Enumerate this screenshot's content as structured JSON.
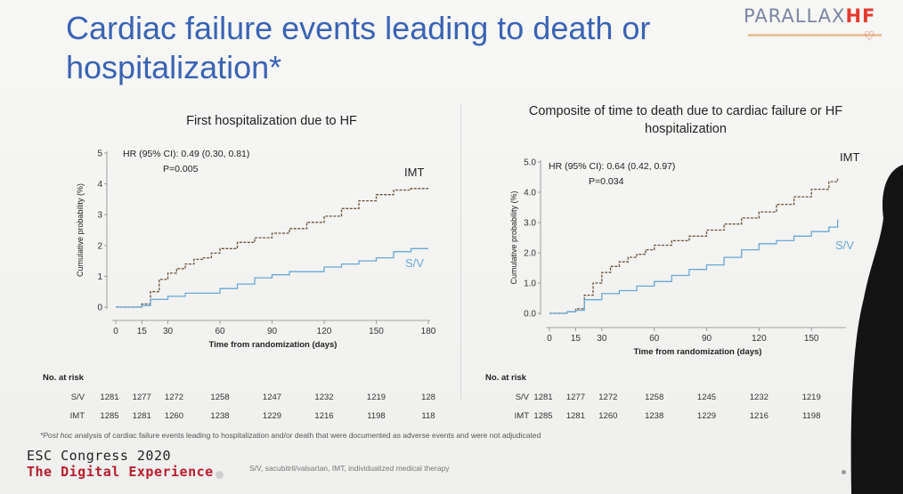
{
  "slide": {
    "title": "Cardiac failure events leading to death or hospitalization*",
    "logo": {
      "main": "PARALLAX",
      "accent": "HF"
    },
    "footnote_prefix": "*Post hoc",
    "footnote_rest": " analysis of cardiac failure events leading to hospitalization and/or death that were documented as adverse events and were not adjudicated",
    "conference_line1": "ESC Congress 2020",
    "conference_line2": "The Digital Experience",
    "abbreviations": "S/V, sacubitril/valsartan, IMT, individualized medical therapy",
    "colors": {
      "title": "#3a63b4",
      "imt": "#6b5238",
      "sv": "#6aa8d6",
      "esc_red": "#b81d2e"
    }
  },
  "chart_data": [
    {
      "type": "line",
      "title": "First hospitalization due to HF",
      "xlabel": "Time from randomization (days)",
      "ylabel": "Cumulative probability (%)",
      "xlim": [
        0,
        180
      ],
      "ylim": [
        0,
        5
      ],
      "xticks": [
        "0",
        "15",
        "30",
        "60",
        "90",
        "120",
        "150",
        "180"
      ],
      "yticks": [
        "0",
        "1",
        "2",
        "3",
        "4",
        "5"
      ],
      "annotation_hr": "HR (95% CI): 0.49 (0.30, 0.81)",
      "annotation_p": "P=0.005",
      "series": [
        {
          "name": "IMT",
          "color": "#6b5238",
          "x": [
            0,
            10,
            15,
            20,
            25,
            30,
            35,
            40,
            45,
            50,
            55,
            60,
            70,
            80,
            90,
            100,
            110,
            120,
            130,
            140,
            150,
            160,
            170,
            180
          ],
          "y": [
            0,
            0,
            0.1,
            0.5,
            0.9,
            1.1,
            1.25,
            1.4,
            1.55,
            1.6,
            1.75,
            1.9,
            2.1,
            2.25,
            2.4,
            2.55,
            2.75,
            2.95,
            3.2,
            3.45,
            3.65,
            3.8,
            3.85,
            3.85
          ]
        },
        {
          "name": "S/V",
          "color": "#6aa8d6",
          "x": [
            0,
            10,
            15,
            20,
            30,
            40,
            60,
            70,
            80,
            90,
            100,
            120,
            130,
            140,
            150,
            160,
            170,
            180
          ],
          "y": [
            0,
            0,
            0.05,
            0.25,
            0.35,
            0.45,
            0.6,
            0.75,
            0.95,
            1.05,
            1.15,
            1.3,
            1.4,
            1.5,
            1.6,
            1.8,
            1.9,
            1.9
          ]
        }
      ],
      "risk_table": {
        "heading": "No. at risk",
        "rows": [
          {
            "label": "S/V",
            "values": [
              "1281",
              "1277",
              "1272",
              "1258",
              "1247",
              "1232",
              "1219",
              "128"
            ]
          },
          {
            "label": "IMT",
            "values": [
              "1285",
              "1281",
              "1260",
              "1238",
              "1229",
              "1216",
              "1198",
              "118"
            ]
          }
        ]
      }
    },
    {
      "type": "line",
      "title": "Composite of time to death due to cardiac failure or HF hospitalization",
      "xlabel": "Time from randomization (days)",
      "ylabel": "Cumulative probability (%)",
      "xlim": [
        0,
        180
      ],
      "ylim": [
        0,
        5
      ],
      "xticks": [
        "0",
        "15",
        "30",
        "60",
        "90",
        "120",
        "150"
      ],
      "yticks": [
        "0.0",
        "1.0",
        "2.0",
        "3.0",
        "4.0",
        "5.0"
      ],
      "annotation_hr": "HR (95% CI): 0.64 (0.42, 0.97)",
      "annotation_p": "P=0.034",
      "series": [
        {
          "name": "IMT",
          "color": "#6b5238",
          "x": [
            0,
            10,
            15,
            20,
            25,
            30,
            35,
            40,
            45,
            50,
            55,
            60,
            70,
            80,
            90,
            100,
            110,
            120,
            130,
            140,
            150,
            160,
            165
          ],
          "y": [
            0,
            0.05,
            0.15,
            0.6,
            1.0,
            1.35,
            1.55,
            1.7,
            1.85,
            1.95,
            2.1,
            2.25,
            2.4,
            2.55,
            2.75,
            2.95,
            3.15,
            3.35,
            3.6,
            3.85,
            4.1,
            4.35,
            4.45
          ]
        },
        {
          "name": "S/V",
          "color": "#6aa8d6",
          "x": [
            0,
            10,
            15,
            20,
            30,
            40,
            50,
            60,
            70,
            80,
            90,
            100,
            110,
            120,
            130,
            140,
            150,
            160,
            165
          ],
          "y": [
            0,
            0.05,
            0.1,
            0.45,
            0.65,
            0.75,
            0.9,
            1.05,
            1.25,
            1.45,
            1.6,
            1.85,
            2.1,
            2.3,
            2.4,
            2.55,
            2.7,
            2.85,
            3.1
          ]
        }
      ],
      "risk_table": {
        "heading": "No. at risk",
        "rows": [
          {
            "label": "S/V",
            "values": [
              "1281",
              "1277",
              "1272",
              "1258",
              "1245",
              "1232",
              "1219"
            ]
          },
          {
            "label": "IMT",
            "values": [
              "1285",
              "1281",
              "1260",
              "1238",
              "1229",
              "1216",
              "1198"
            ]
          }
        ]
      }
    }
  ]
}
